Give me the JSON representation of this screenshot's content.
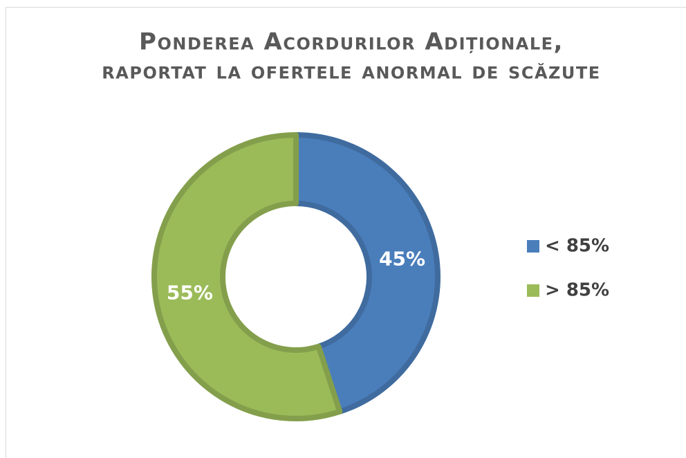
{
  "chart_data": {
    "type": "donut",
    "title": "Ponderea Acordurilor Adiționale,",
    "subtitle": "raportat la ofertele anormal de scăzute",
    "categories": [
      "< 85%",
      "> 85%"
    ],
    "values": [
      45,
      55
    ],
    "value_labels": [
      "45%",
      "55%"
    ],
    "colors": [
      "#4a7ebb",
      "#9bbb59"
    ],
    "legend": "right"
  }
}
